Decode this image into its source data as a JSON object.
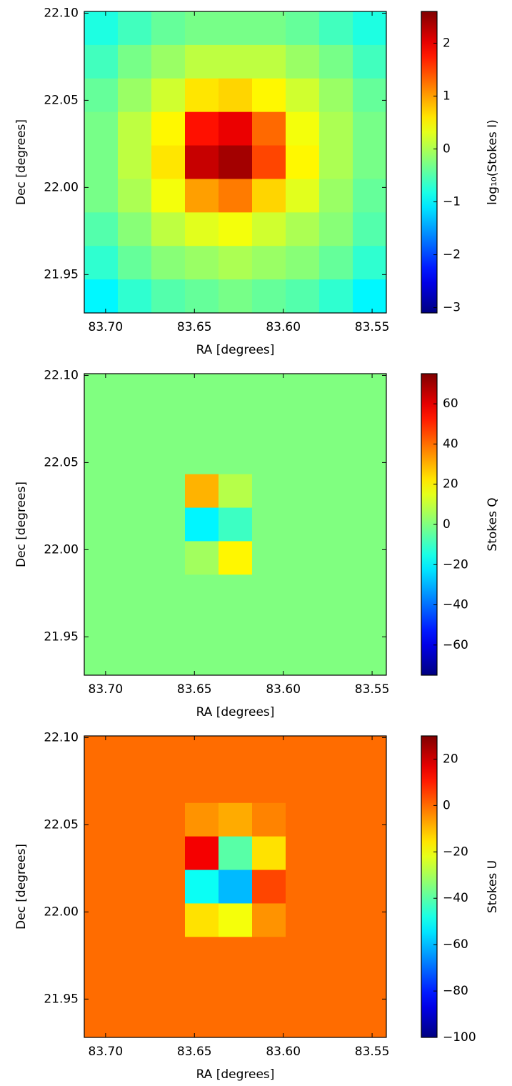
{
  "chart_data": [
    {
      "type": "heatmap",
      "x_label": "RA [degrees]",
      "y_label": "Dec [degrees]",
      "xlim": [
        83.712,
        83.542
      ],
      "ylim": [
        21.928,
        22.101
      ],
      "xticks": [
        {
          "value": 83.7,
          "label": "83.70"
        },
        83.65,
        {
          "value": 83.6,
          "label": "83.60"
        },
        83.55
      ],
      "yticks": [
        {
          "value": 22.1,
          "label": "22.10"
        },
        22.05,
        {
          "value": 22.0,
          "label": "22.00"
        },
        21.95
      ],
      "colormap": "jet",
      "clim": [
        -3.1,
        2.6
      ],
      "cticks": [
        {
          "value": -3,
          "label": "−3"
        },
        {
          "value": -2,
          "label": "−2"
        },
        {
          "value": -1,
          "label": "−1"
        },
        0,
        1,
        2
      ],
      "colorbar_label": "log₁₀(Stokes I)",
      "z": [
        [
          -0.8,
          -0.6,
          -0.4,
          -0.3,
          -0.3,
          -0.3,
          -0.4,
          -0.6,
          -0.8
        ],
        [
          -0.6,
          -0.3,
          -0.1,
          0.1,
          0.1,
          0.1,
          -0.1,
          -0.3,
          -0.6
        ],
        [
          -0.4,
          -0.1,
          0.2,
          0.6,
          0.7,
          0.5,
          0.2,
          -0.1,
          -0.4
        ],
        [
          -0.3,
          0.1,
          0.5,
          1.8,
          2.0,
          1.3,
          0.4,
          0.0,
          -0.3
        ],
        [
          -0.3,
          0.1,
          0.6,
          2.2,
          2.4,
          1.5,
          0.5,
          0.0,
          -0.3
        ],
        [
          -0.3,
          0.0,
          0.4,
          1.0,
          1.2,
          0.7,
          0.3,
          -0.1,
          -0.4
        ],
        [
          -0.5,
          -0.2,
          0.1,
          0.3,
          0.4,
          0.2,
          0.0,
          -0.2,
          -0.5
        ],
        [
          -0.7,
          -0.4,
          -0.2,
          -0.1,
          0.0,
          -0.1,
          -0.2,
          -0.4,
          -0.7
        ],
        [
          -1.0,
          -0.7,
          -0.5,
          -0.4,
          -0.3,
          -0.4,
          -0.5,
          -0.7,
          -1.0
        ]
      ]
    },
    {
      "type": "heatmap",
      "x_label": "RA [degrees]",
      "y_label": "Dec [degrees]",
      "xlim": [
        83.712,
        83.542
      ],
      "ylim": [
        21.928,
        22.101
      ],
      "xticks": [
        {
          "value": 83.7,
          "label": "83.70"
        },
        83.65,
        {
          "value": 83.6,
          "label": "83.60"
        },
        83.55
      ],
      "yticks": [
        {
          "value": 22.1,
          "label": "22.10"
        },
        22.05,
        {
          "value": 22.0,
          "label": "22.00"
        },
        21.95
      ],
      "colormap": "jet",
      "clim": [
        -75,
        75
      ],
      "cticks": [
        {
          "value": -60,
          "label": "−60"
        },
        {
          "value": -40,
          "label": "−40"
        },
        {
          "value": -20,
          "label": "−20"
        },
        0,
        20,
        40,
        60
      ],
      "colorbar_label": "Stokes Q",
      "z": [
        [
          0,
          0,
          0,
          0,
          0,
          0,
          0,
          0,
          0
        ],
        [
          0,
          0,
          0,
          0,
          0,
          0,
          0,
          0,
          0
        ],
        [
          0,
          0,
          0,
          0,
          0,
          0,
          0,
          0,
          0
        ],
        [
          0,
          0,
          0,
          30,
          8,
          0,
          0,
          0,
          0
        ],
        [
          0,
          0,
          0,
          -20,
          -10,
          0,
          0,
          0,
          0
        ],
        [
          0,
          0,
          0,
          5,
          20,
          0,
          0,
          0,
          0
        ],
        [
          0,
          0,
          0,
          0,
          0,
          0,
          0,
          0,
          0
        ],
        [
          0,
          0,
          0,
          0,
          0,
          0,
          0,
          0,
          0
        ],
        [
          0,
          0,
          0,
          0,
          0,
          0,
          0,
          0,
          0
        ]
      ]
    },
    {
      "type": "heatmap",
      "x_label": "RA [degrees]",
      "y_label": "Dec [degrees]",
      "xlim": [
        83.712,
        83.542
      ],
      "ylim": [
        21.928,
        22.101
      ],
      "xticks": [
        {
          "value": 83.7,
          "label": "83.70"
        },
        83.65,
        {
          "value": 83.6,
          "label": "83.60"
        },
        83.55
      ],
      "yticks": [
        {
          "value": 22.1,
          "label": "22.10"
        },
        22.05,
        {
          "value": 22.0,
          "label": "22.00"
        },
        21.95
      ],
      "colormap": "jet",
      "clim": [
        -100,
        30
      ],
      "cticks": [
        {
          "value": -100,
          "label": "−100"
        },
        {
          "value": -80,
          "label": "−80"
        },
        {
          "value": -60,
          "label": "−60"
        },
        {
          "value": -40,
          "label": "−40"
        },
        {
          "value": -20,
          "label": "−20"
        },
        0,
        20
      ],
      "colorbar_label": "Stokes U",
      "z": [
        [
          0,
          0,
          0,
          0,
          0,
          0,
          0,
          0,
          0
        ],
        [
          0,
          0,
          0,
          0,
          0,
          0,
          0,
          0,
          0
        ],
        [
          0,
          0,
          0,
          -5,
          -8,
          -3,
          0,
          0,
          0
        ],
        [
          0,
          0,
          0,
          15,
          -40,
          -15,
          0,
          0,
          0
        ],
        [
          0,
          0,
          0,
          -50,
          -60,
          5,
          0,
          0,
          0
        ],
        [
          0,
          0,
          0,
          -15,
          -20,
          -5,
          0,
          0,
          0
        ],
        [
          0,
          0,
          0,
          0,
          0,
          0,
          0,
          0,
          0
        ],
        [
          0,
          0,
          0,
          0,
          0,
          0,
          0,
          0,
          0
        ],
        [
          0,
          0,
          0,
          0,
          0,
          0,
          0,
          0,
          0
        ]
      ]
    }
  ]
}
